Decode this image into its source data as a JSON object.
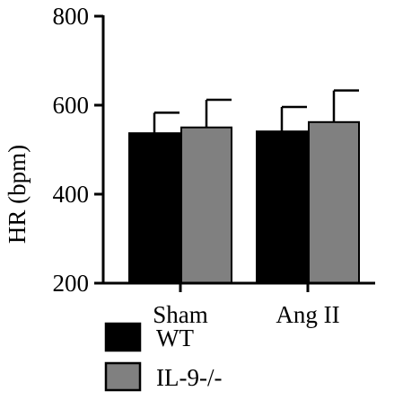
{
  "chart_data": {
    "type": "bar",
    "title": "",
    "xlabel": "",
    "ylabel": "HR (bpm)",
    "ylim": [
      200,
      800
    ],
    "yticks": [
      200,
      400,
      600,
      800
    ],
    "categories": [
      "Sham",
      "Ang II"
    ],
    "series": [
      {
        "name": "WT",
        "color": "#000000",
        "values": [
          537,
          541
        ],
        "errors": [
          46,
          55
        ]
      },
      {
        "name": "IL-9-/-",
        "color": "#808080",
        "values": [
          550,
          562
        ],
        "errors": [
          62,
          71
        ]
      }
    ],
    "grid": false,
    "legend_position": "bottom-left",
    "error_bars": "upper only"
  }
}
